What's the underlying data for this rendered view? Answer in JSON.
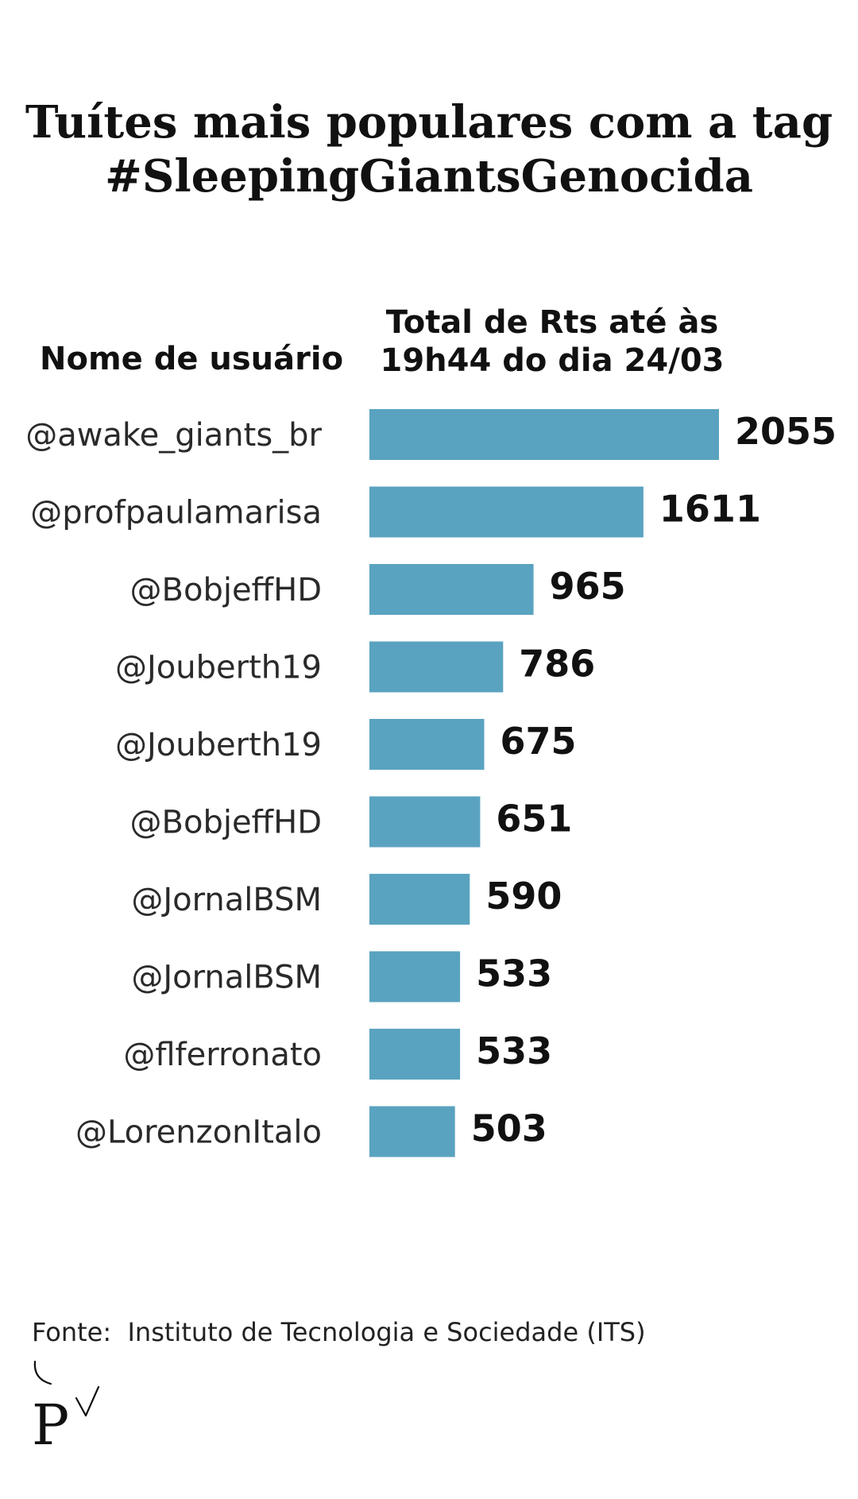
{
  "chart_data": {
    "type": "bar",
    "orientation": "horizontal",
    "title": [
      "Tuítes mais populares com a tag",
      "#SleepingGiantsGenocida"
    ],
    "category_header": "Nome de usuário",
    "value_header": [
      "Total de Rts até às",
      "19h44 do dia 24/03"
    ],
    "categories": [
      "@awake_giants_br",
      "@profpaulamarisa",
      "@BobjeffHD",
      "@Jouberth19",
      "@Jouberth19",
      "@BobjeffHD",
      "@JornalBSM",
      "@JornalBSM",
      "@flferronato",
      "@LorenzonItalo"
    ],
    "values": [
      2055,
      1611,
      965,
      786,
      675,
      651,
      590,
      533,
      533,
      503
    ],
    "value_labels": [
      "2055",
      "1611",
      "965",
      "786",
      "675",
      "651",
      "590",
      "533",
      "533",
      "503"
    ],
    "bar_color": "#5aa3c0",
    "grid": false,
    "xlim": [
      0,
      2055
    ]
  },
  "source": "Fonte:  Instituto de Tecnologia e Sociedade (ITS)",
  "logo": {
    "icon": "publisher-p-logo",
    "color": "#111111"
  }
}
